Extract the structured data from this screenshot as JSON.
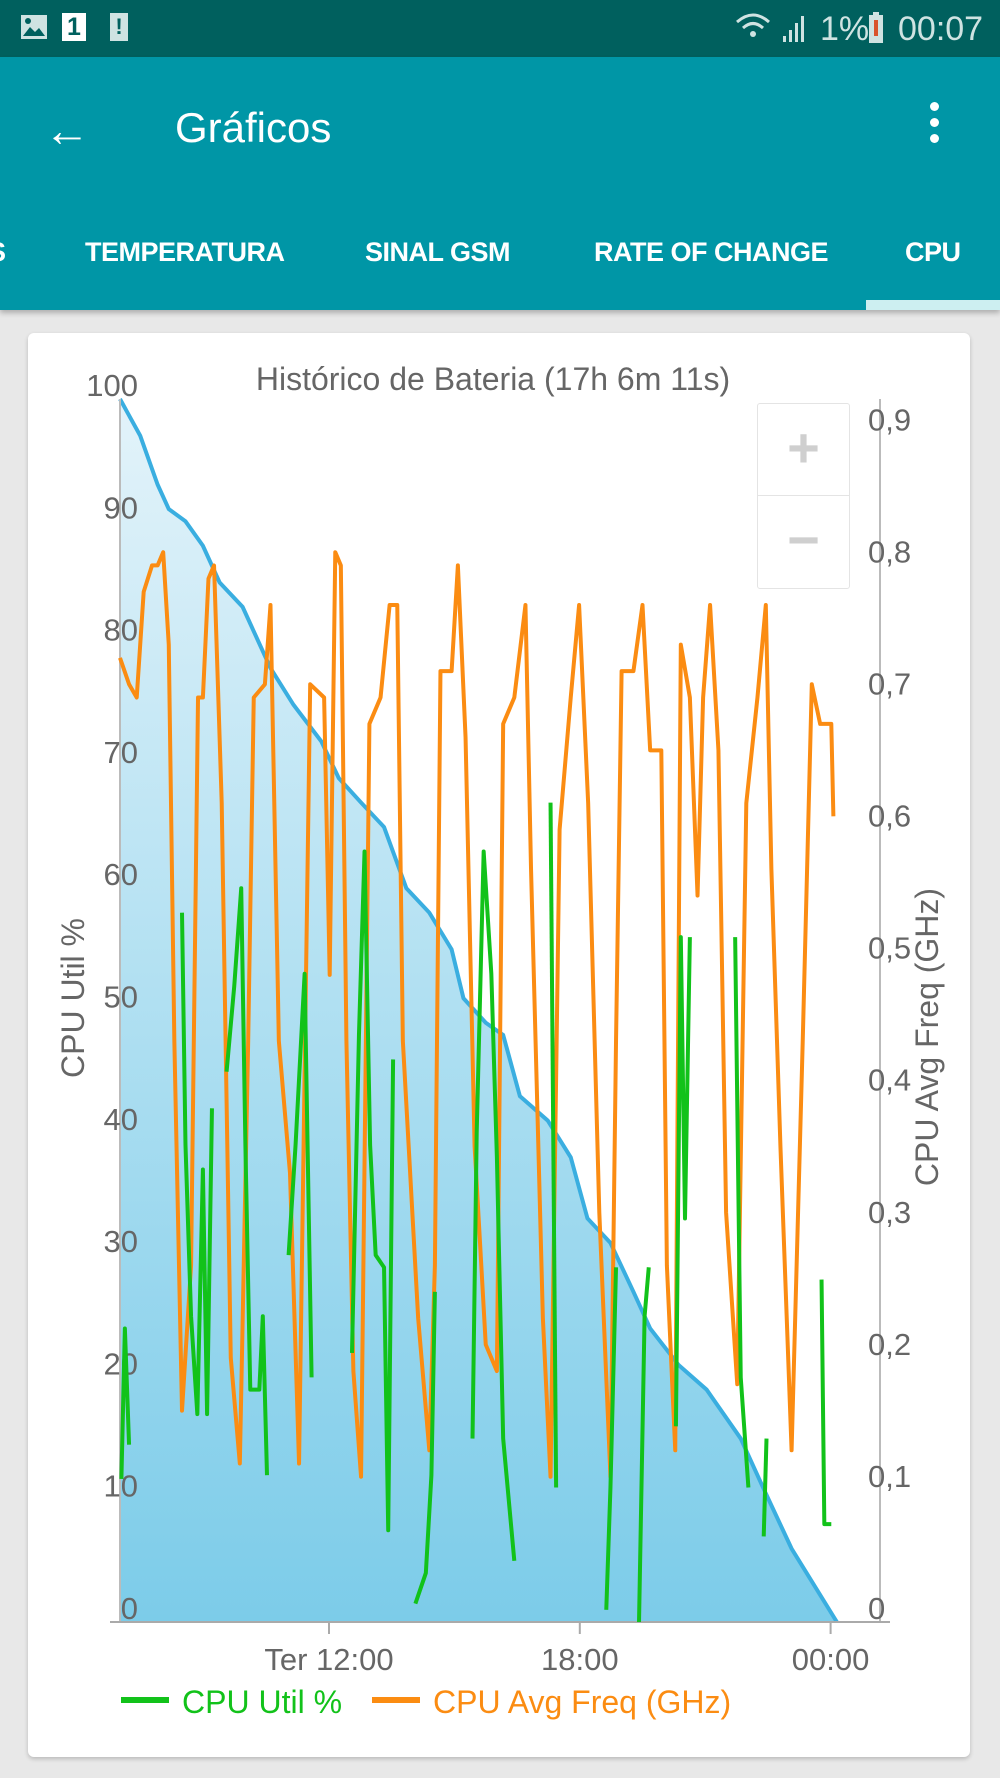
{
  "status_bar": {
    "battery_percent": "1%",
    "time": "00:07",
    "notification_count": "1",
    "icons": [
      "image-icon",
      "notification-1-icon",
      "alert-icon",
      "wifi-icon",
      "signal-icon",
      "battery-low-icon"
    ]
  },
  "app_bar": {
    "title": "Gráficos",
    "back_icon": "arrow-left-icon",
    "menu_icon": "more-vert-icon"
  },
  "tabs": [
    {
      "label": "S"
    },
    {
      "label": "TEMPERATURA"
    },
    {
      "label": "SINAL GSM"
    },
    {
      "label": "RATE OF CHANGE"
    },
    {
      "label": "CPU",
      "selected": true
    }
  ],
  "zoom_controls": {
    "plus": "+",
    "minus": "−"
  },
  "chart_data": {
    "type": "line",
    "title": "Histórico de Bateria (17h 6m 11s)",
    "ylabel_left": "CPU Util %",
    "ylabel_right": "CPU Avg Freq (GHz)",
    "ylim_left": [
      0,
      100
    ],
    "ylim_right": [
      0,
      0.926
    ],
    "x_ticks": [
      "Ter 12:00",
      "18:00",
      "00:00"
    ],
    "x_tick_times": [
      "12:00",
      "18:00",
      "00:00"
    ],
    "y_ticks_left": [
      "0",
      "10",
      "20",
      "30",
      "40",
      "50",
      "60",
      "70",
      "80",
      "90",
      "100"
    ],
    "y_ticks_right": [
      "0",
      "0,1",
      "0,2",
      "0,3",
      "0,4",
      "0,5",
      "0,6",
      "0,7",
      "0,8",
      "0,9"
    ],
    "legend": "bottom-left",
    "colors": {
      "battery_line": "#3aaee0",
      "battery_fill_top": "#e3f3fa",
      "battery_fill_bottom": "#7ccce9",
      "cpu_util": "#12c21a",
      "cpu_freq": "#fb8c12"
    },
    "battery": [
      [
        "07:00",
        100
      ],
      [
        "07:29",
        97
      ],
      [
        "07:54",
        93
      ],
      [
        "08:10",
        91
      ],
      [
        "08:34",
        90
      ],
      [
        "08:59",
        88
      ],
      [
        "09:23",
        85
      ],
      [
        "09:56",
        83
      ],
      [
        "10:36",
        78
      ],
      [
        "11:09",
        75
      ],
      [
        "11:49",
        72
      ],
      [
        "12:14",
        69
      ],
      [
        "12:46",
        67
      ],
      [
        "13:19",
        65
      ],
      [
        "13:51",
        60
      ],
      [
        "14:24",
        58
      ],
      [
        "14:56",
        55
      ],
      [
        "15:13",
        51
      ],
      [
        "15:45",
        49
      ],
      [
        "16:10",
        48
      ],
      [
        "16:34",
        43
      ],
      [
        "17:14",
        41
      ],
      [
        "17:47",
        38
      ],
      [
        "18:11",
        33
      ],
      [
        "18:44",
        31
      ],
      [
        "19:17",
        27
      ],
      [
        "19:41",
        24
      ],
      [
        "20:22",
        21
      ],
      [
        "21:02",
        19
      ],
      [
        "21:51",
        15
      ],
      [
        "22:23",
        11
      ],
      [
        "23:04",
        6
      ],
      [
        "00:09",
        0
      ]
    ],
    "series": [
      {
        "name": "CPU Util %",
        "axis": "left",
        "segments": [
          [
            [
              "07:02",
              11.7
            ],
            [
              "07:07",
              24
            ],
            [
              "07:13",
              14.5
            ]
          ],
          [
            [
              "08:29",
              58
            ],
            [
              "08:34",
              39
            ],
            [
              "08:42",
              25
            ],
            [
              "08:51",
              17
            ],
            [
              "08:59",
              37
            ],
            [
              "09:05",
              17
            ],
            [
              "09:12",
              42
            ]
          ],
          [
            [
              "09:33",
              45
            ],
            [
              "09:44",
              52
            ],
            [
              "09:54",
              60
            ],
            [
              "10:00",
              39
            ],
            [
              "10:07",
              19
            ],
            [
              "10:20",
              19
            ],
            [
              "10:25",
              25
            ],
            [
              "10:31",
              12
            ]
          ],
          [
            [
              "11:02",
              30
            ],
            [
              "11:12",
              39
            ],
            [
              "11:25",
              53
            ],
            [
              "11:35",
              20
            ]
          ],
          [
            [
              "12:33",
              22
            ],
            [
              "12:43",
              48
            ],
            [
              "12:51",
              63
            ],
            [
              "12:59",
              39
            ],
            [
              "13:07",
              30
            ],
            [
              "13:19",
              29
            ],
            [
              "13:25",
              7.5
            ],
            [
              "13:32",
              46
            ]
          ],
          [
            [
              "14:04",
              1.5
            ],
            [
              "14:19",
              4
            ],
            [
              "14:27",
              12
            ],
            [
              "14:32",
              27
            ]
          ],
          [
            [
              "15:26",
              15
            ],
            [
              "15:32",
              40
            ],
            [
              "15:42",
              63
            ],
            [
              "15:53",
              53
            ],
            [
              "16:01",
              38
            ],
            [
              "16:10",
              15
            ],
            [
              "16:26",
              5
            ]
          ],
          [
            [
              "17:18",
              67
            ],
            [
              "17:26",
              11
            ]
          ],
          [
            [
              "18:38",
              1
            ],
            [
              "18:44",
              11
            ],
            [
              "18:52",
              29
            ]
          ],
          [
            [
              "19:25",
              0
            ],
            [
              "19:33",
              25
            ],
            [
              "19:39",
              29
            ]
          ],
          [
            [
              "20:18",
              16
            ],
            [
              "20:25",
              56
            ],
            [
              "20:31",
              33
            ],
            [
              "20:38",
              56
            ]
          ],
          [
            [
              "21:43",
              56
            ],
            [
              "21:51",
              20
            ],
            [
              "22:02",
              11
            ]
          ],
          [
            [
              "22:24",
              7
            ],
            [
              "22:28",
              15
            ]
          ],
          [
            [
              "23:47",
              28
            ],
            [
              "23:51",
              8
            ],
            [
              "00:01",
              8
            ]
          ]
        ]
      },
      {
        "name": "CPU Avg Freq (GHz)",
        "axis": "right",
        "points": [
          [
            "07:00",
            0.73
          ],
          [
            "07:13",
            0.71
          ],
          [
            "07:24",
            0.7
          ],
          [
            "07:34",
            0.78
          ],
          [
            "07:46",
            0.8
          ],
          [
            "07:54",
            0.8
          ],
          [
            "08:02",
            0.81
          ],
          [
            "08:10",
            0.74
          ],
          [
            "08:18",
            0.44
          ],
          [
            "08:29",
            0.16
          ],
          [
            "08:42",
            0.27
          ],
          [
            "08:52",
            0.7
          ],
          [
            "08:59",
            0.7
          ],
          [
            "09:07",
            0.79
          ],
          [
            "09:15",
            0.8
          ],
          [
            "09:26",
            0.62
          ],
          [
            "09:39",
            0.2
          ],
          [
            "09:52",
            0.12
          ],
          [
            "10:04",
            0.44
          ],
          [
            "10:12",
            0.7
          ],
          [
            "10:28",
            0.71
          ],
          [
            "10:36",
            0.77
          ],
          [
            "10:48",
            0.44
          ],
          [
            "11:04",
            0.34
          ],
          [
            "11:17",
            0.12
          ],
          [
            "11:33",
            0.71
          ],
          [
            "11:53",
            0.7
          ],
          [
            "12:01",
            0.49
          ],
          [
            "12:09",
            0.81
          ],
          [
            "12:17",
            0.8
          ],
          [
            "12:25",
            0.44
          ],
          [
            "12:35",
            0.19
          ],
          [
            "12:46",
            0.11
          ],
          [
            "12:58",
            0.68
          ],
          [
            "13:14",
            0.7
          ],
          [
            "13:27",
            0.77
          ],
          [
            "13:38",
            0.77
          ],
          [
            "13:46",
            0.44
          ],
          [
            "14:08",
            0.23
          ],
          [
            "14:24",
            0.13
          ],
          [
            "14:32",
            0.27
          ],
          [
            "14:40",
            0.72
          ],
          [
            "14:56",
            0.72
          ],
          [
            "15:05",
            0.8
          ],
          [
            "15:16",
            0.67
          ],
          [
            "15:29",
            0.36
          ],
          [
            "15:45",
            0.21
          ],
          [
            "16:01",
            0.19
          ],
          [
            "16:10",
            0.68
          ],
          [
            "16:26",
            0.7
          ],
          [
            "16:42",
            0.77
          ],
          [
            "16:50",
            0.57
          ],
          [
            "17:07",
            0.23
          ],
          [
            "17:18",
            0.11
          ],
          [
            "17:31",
            0.6
          ],
          [
            "17:47",
            0.7
          ],
          [
            "17:59",
            0.77
          ],
          [
            "18:12",
            0.62
          ],
          [
            "18:28",
            0.31
          ],
          [
            "18:44",
            0.11
          ],
          [
            "18:52",
            0.44
          ],
          [
            "19:00",
            0.72
          ],
          [
            "19:17",
            0.72
          ],
          [
            "19:30",
            0.77
          ],
          [
            "19:41",
            0.66
          ],
          [
            "19:57",
            0.66
          ],
          [
            "20:05",
            0.27
          ],
          [
            "20:17",
            0.13
          ],
          [
            "20:25",
            0.74
          ],
          [
            "20:38",
            0.7
          ],
          [
            "20:49",
            0.55
          ],
          [
            "20:57",
            0.7
          ],
          [
            "21:07",
            0.77
          ],
          [
            "21:19",
            0.66
          ],
          [
            "21:30",
            0.31
          ],
          [
            "21:46",
            0.18
          ],
          [
            "21:59",
            0.62
          ],
          [
            "22:15",
            0.7
          ],
          [
            "22:27",
            0.77
          ],
          [
            "22:35",
            0.57
          ],
          [
            "22:48",
            0.36
          ],
          [
            "23:04",
            0.13
          ],
          [
            "23:20",
            0.44
          ],
          [
            "23:33",
            0.71
          ],
          [
            "23:45",
            0.68
          ],
          [
            "00:01",
            0.68
          ],
          [
            "00:04",
            0.61
          ]
        ]
      }
    ]
  }
}
